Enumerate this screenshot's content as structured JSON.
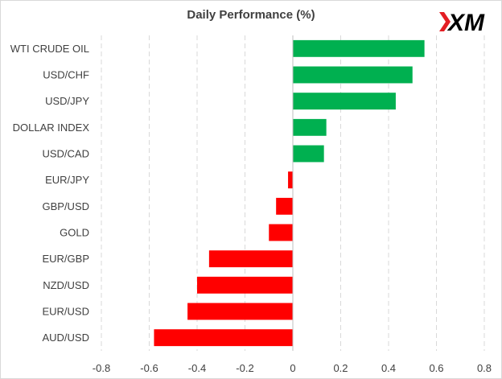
{
  "logo": {
    "text": "XM",
    "accent_color": "#e31e24",
    "text_color": "#000000"
  },
  "chart_data": {
    "type": "bar",
    "orientation": "horizontal",
    "title": "Daily Performance (%)",
    "categories": [
      "WTI CRUDE OIL",
      "USD/CHF",
      "USD/JPY",
      "DOLLAR INDEX",
      "USD/CAD",
      "EUR/JPY",
      "GBP/USD",
      "GOLD",
      "EUR/GBP",
      "NZD/USD",
      "EUR/USD",
      "AUD/USD"
    ],
    "values": [
      0.55,
      0.5,
      0.43,
      0.14,
      0.13,
      -0.02,
      -0.07,
      -0.1,
      -0.35,
      -0.4,
      -0.44,
      -0.58
    ],
    "xlim": [
      -0.8,
      0.8
    ],
    "xticks": [
      "-0.8",
      "-0.6",
      "-0.4",
      "-0.2",
      "0",
      "0.2",
      "0.4",
      "0.6",
      "0.8"
    ],
    "xtick_values": [
      -0.8,
      -0.6,
      -0.4,
      -0.2,
      0,
      0.2,
      0.4,
      0.6,
      0.8
    ],
    "grid": "vertical dashed",
    "colors": {
      "positive": "#00b050",
      "negative": "#ff0000",
      "grid": "#d9d9d9",
      "axis": "#bfbfbf"
    },
    "legend": "none"
  }
}
